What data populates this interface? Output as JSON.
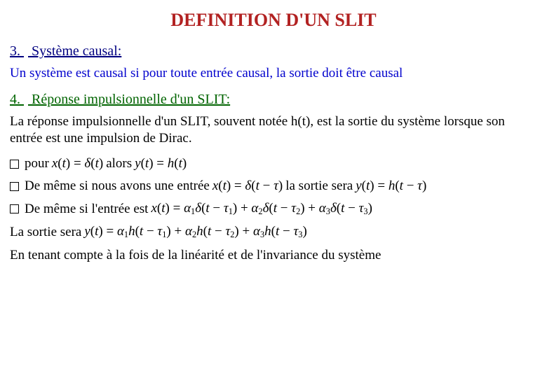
{
  "title": "DEFINITION D'UN SLIT",
  "colors": {
    "title": "#b22222",
    "heading3": "#000080",
    "body3": "#0000cd",
    "heading4": "#006400",
    "body4": "#000000"
  },
  "section3": {
    "number": "3.",
    "heading": "Système causal:",
    "body": "Un système est causal si pour toute entrée causal, la sortie doit être causal"
  },
  "section4": {
    "number": "4.",
    "heading": "Réponse impulsionnelle d'un SLIT:",
    "intro": "La réponse impulsionnelle d'un SLIT, souvent notée h(t), est la sortie du système lorsque son entrée est une impulsion de Dirac.",
    "bullet1_pour": "pour",
    "bullet1_alors": "alors",
    "bullet2_pre": "De même si nous avons une entrée",
    "bullet2_post": "la sortie sera",
    "bullet3_pre": "De même si l'entrée est",
    "line_sortie": "La sortie sera",
    "closing": "En tenant compte à la fois de la linéarité et de l'invariance du système"
  },
  "formulas": {
    "f1a": "x(t) = δ(t)",
    "f1b": "y(t) = h(t)",
    "f2a": "x(t) = δ(t − τ)",
    "f2b": "y(t) = h(t − τ)",
    "f3": "x(t) = α₁δ(t − τ₁) + α₂δ(t − τ₂) + α₃δ(t − τ₃)",
    "f4": "y(t) = α₁h(t − τ₁) + α₂h(t − τ₂) + α₃h(t − τ₃)"
  }
}
